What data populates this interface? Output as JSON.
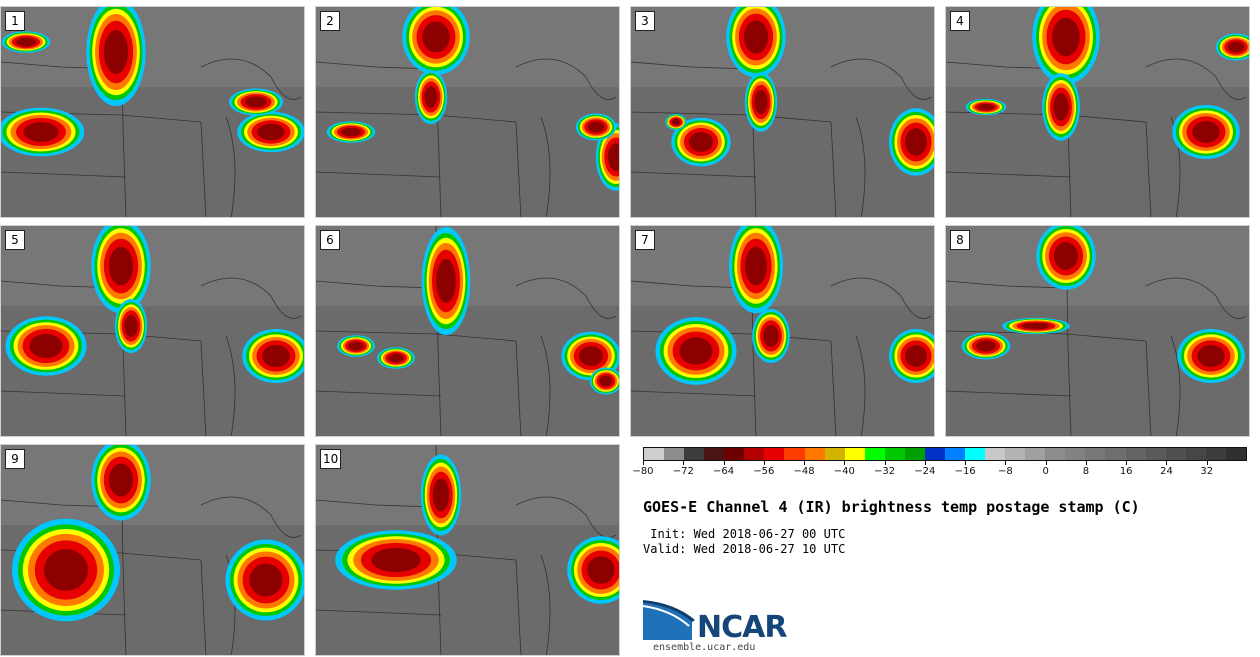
{
  "panels": [
    {
      "label": "1"
    },
    {
      "label": "2"
    },
    {
      "label": "3"
    },
    {
      "label": "4"
    },
    {
      "label": "5"
    },
    {
      "label": "6"
    },
    {
      "label": "7"
    },
    {
      "label": "8"
    },
    {
      "label": "9"
    },
    {
      "label": "10"
    }
  ],
  "colorbar": {
    "colors": [
      "#cfcfcf",
      "#8c8c8c",
      "#3c3c3c",
      "#4a1414",
      "#6e0000",
      "#b40000",
      "#e60000",
      "#ff3c00",
      "#ff7800",
      "#d2b400",
      "#ffff00",
      "#00ff00",
      "#00c800",
      "#00a000",
      "#0032c8",
      "#0080ff",
      "#00ffff",
      "#c8c8c8",
      "#b4b4b4",
      "#a0a0a0",
      "#8c8c8c",
      "#828282",
      "#787878",
      "#6e6e6e",
      "#646464",
      "#5a5a5a",
      "#505050",
      "#464646",
      "#3c3c3c",
      "#303030"
    ],
    "tick_labels": [
      "−80",
      "−72",
      "−64",
      "−56",
      "−48",
      "−40",
      "−32",
      "−24",
      "−16",
      "−8",
      "0",
      "8",
      "16",
      "24",
      "32"
    ]
  },
  "title": "GOES-E Channel 4 (IR) brightness temp postage stamp (C)",
  "init": " Init: Wed 2018-06-27 00 UTC",
  "valid": "Valid: Wed 2018-06-27 10 UTC",
  "logo": {
    "name": "NCAR",
    "url": "ensemble.ucar.edu"
  }
}
